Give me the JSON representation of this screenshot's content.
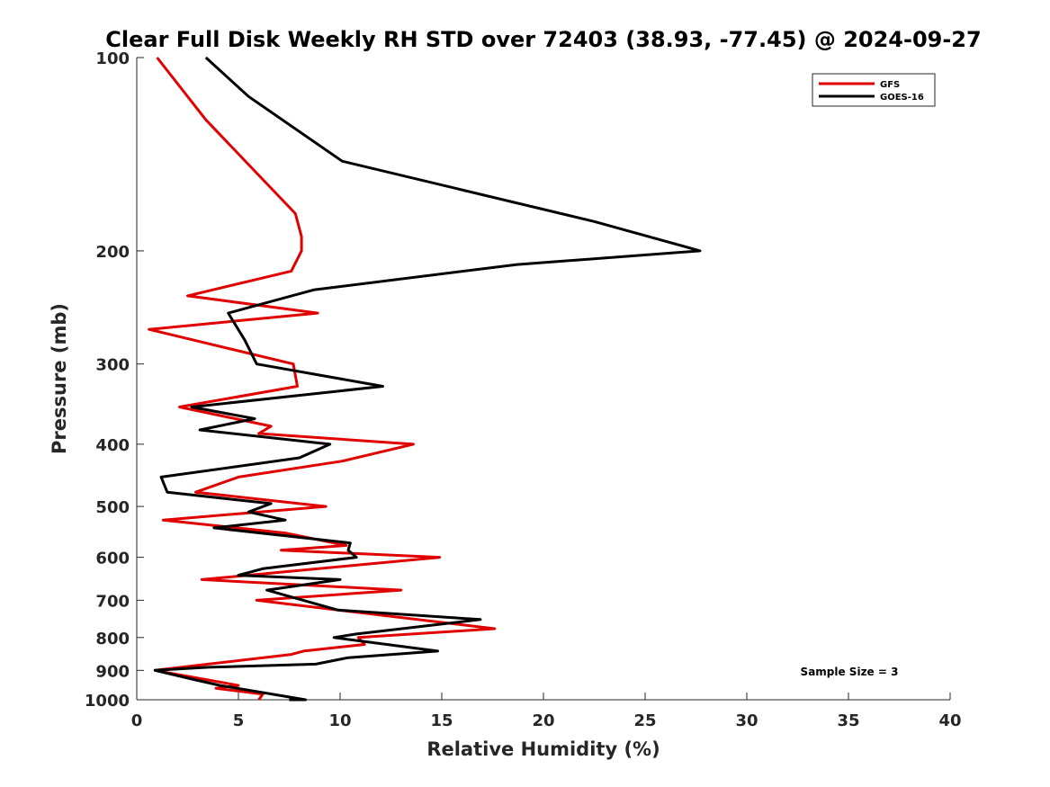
{
  "chart_data": {
    "type": "line",
    "title": "Clear Full Disk Weekly RH STD over 72403 (38.93, -77.45) @ 2024-09-27",
    "xlabel": "Relative Humidity (%)",
    "ylabel": "Pressure (mb)",
    "xlim": [
      0,
      40
    ],
    "ylim": [
      100,
      1000
    ],
    "y_scale": "log",
    "y_reversed": true,
    "xticks": [
      0,
      5,
      10,
      15,
      20,
      25,
      30,
      35,
      40
    ],
    "yticks": [
      100,
      200,
      300,
      400,
      500,
      600,
      700,
      800,
      900,
      1000
    ],
    "grid": false,
    "legend_position": "top-right",
    "annotation": "Sample Size = 3",
    "series": [
      {
        "name": "GFS",
        "color": "#e00000",
        "points": [
          [
            1.0,
            100
          ],
          [
            3.4,
            125
          ],
          [
            7.8,
            175
          ],
          [
            8.1,
            190
          ],
          [
            8.1,
            200
          ],
          [
            7.6,
            215
          ],
          [
            2.5,
            235
          ],
          [
            8.9,
            250
          ],
          [
            0.6,
            265
          ],
          [
            7.7,
            300
          ],
          [
            7.9,
            325
          ],
          [
            2.1,
            350
          ],
          [
            6.6,
            375
          ],
          [
            6.0,
            385
          ],
          [
            13.6,
            400
          ],
          [
            10.1,
            425
          ],
          [
            5.0,
            450
          ],
          [
            2.9,
            475
          ],
          [
            9.3,
            500
          ],
          [
            1.3,
            525
          ],
          [
            7.3,
            550
          ],
          [
            10.3,
            575
          ],
          [
            7.1,
            585
          ],
          [
            14.9,
            600
          ],
          [
            3.2,
            650
          ],
          [
            13.0,
            675
          ],
          [
            5.9,
            700
          ],
          [
            17.6,
            775
          ],
          [
            10.9,
            800
          ],
          [
            11.2,
            820
          ],
          [
            8.2,
            840
          ],
          [
            7.6,
            850
          ],
          [
            0.9,
            900
          ],
          [
            5.0,
            950
          ],
          [
            3.9,
            960
          ],
          [
            6.2,
            980
          ],
          [
            6.0,
            1000
          ]
        ]
      },
      {
        "name": "GOES-16",
        "color": "#000000",
        "points": [
          [
            3.4,
            100
          ],
          [
            5.5,
            115
          ],
          [
            10.1,
            145
          ],
          [
            22.5,
            180
          ],
          [
            27.7,
            200
          ],
          [
            18.7,
            210
          ],
          [
            8.7,
            230
          ],
          [
            4.5,
            250
          ],
          [
            5.3,
            275
          ],
          [
            5.9,
            300
          ],
          [
            12.1,
            325
          ],
          [
            2.7,
            350
          ],
          [
            5.8,
            365
          ],
          [
            3.1,
            380
          ],
          [
            9.5,
            400
          ],
          [
            8.0,
            420
          ],
          [
            1.2,
            450
          ],
          [
            1.5,
            475
          ],
          [
            6.6,
            495
          ],
          [
            5.5,
            510
          ],
          [
            7.3,
            525
          ],
          [
            3.8,
            540
          ],
          [
            10.5,
            570
          ],
          [
            10.4,
            585
          ],
          [
            10.8,
            600
          ],
          [
            6.2,
            625
          ],
          [
            5.0,
            640
          ],
          [
            10.0,
            650
          ],
          [
            6.4,
            675
          ],
          [
            9.9,
            725
          ],
          [
            16.9,
            750
          ],
          [
            10.8,
            790
          ],
          [
            9.7,
            800
          ],
          [
            14.8,
            840
          ],
          [
            10.4,
            860
          ],
          [
            8.8,
            880
          ],
          [
            3.5,
            890
          ],
          [
            0.9,
            900
          ],
          [
            2.8,
            930
          ],
          [
            4.1,
            950
          ],
          [
            8.3,
            1000
          ],
          [
            7.5,
            1000
          ]
        ]
      }
    ]
  }
}
